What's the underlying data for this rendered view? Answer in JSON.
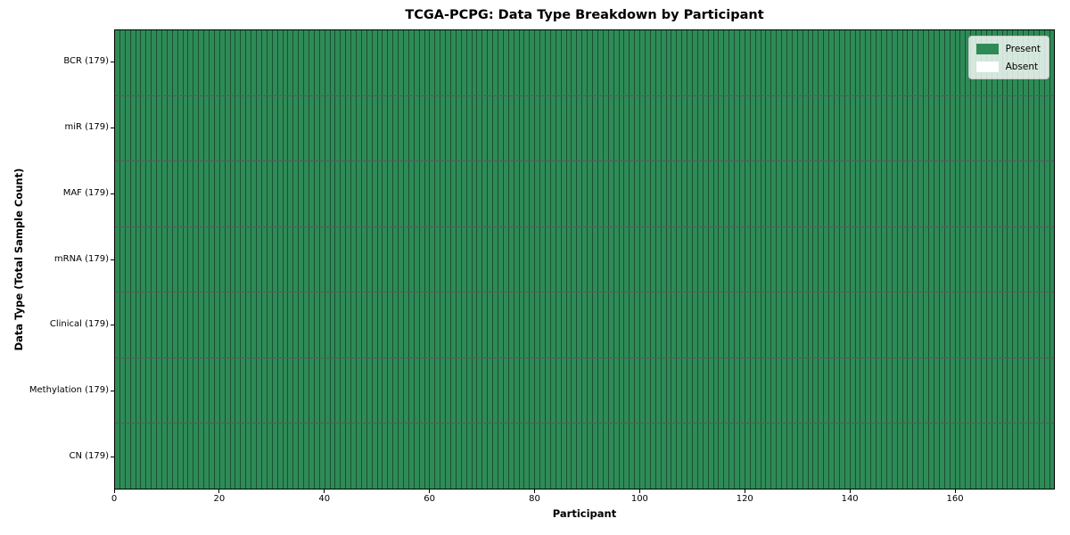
{
  "chart_data": {
    "type": "heatmap",
    "title": "TCGA-PCPG: Data Type Breakdown by Participant",
    "xlabel": "Participant",
    "ylabel": "Data Type (Total Sample Count)",
    "n_participants": 179,
    "x_range": [
      0,
      179
    ],
    "x_ticks": [
      0,
      20,
      40,
      60,
      80,
      100,
      120,
      140,
      160
    ],
    "grid": true,
    "rows": [
      {
        "label": "BCR (179)",
        "total": 179,
        "present": 179,
        "absent": 0
      },
      {
        "label": "miR (179)",
        "total": 179,
        "present": 179,
        "absent": 0
      },
      {
        "label": "MAF (179)",
        "total": 179,
        "present": 179,
        "absent": 0
      },
      {
        "label": "mRNA (179)",
        "total": 179,
        "present": 179,
        "absent": 0
      },
      {
        "label": "Clinical (179)",
        "total": 179,
        "present": 179,
        "absent": 0
      },
      {
        "label": "Methylation (179)",
        "total": 179,
        "present": 179,
        "absent": 0
      },
      {
        "label": "CN (179)",
        "total": 179,
        "present": 179,
        "absent": 0
      }
    ],
    "legend": {
      "position": "upper right",
      "entries": [
        {
          "label": "Present",
          "color": "#2e8b57"
        },
        {
          "label": "Absent",
          "color": "#ffffff"
        }
      ]
    },
    "colors": {
      "present": "#2e8b57",
      "absent": "#ffffff",
      "cell_border": "rgba(0,0,0,0.42)",
      "row_divider": "rgba(0,0,0,0.65)",
      "axes_border": "#000000",
      "background": "#ffffff"
    }
  }
}
